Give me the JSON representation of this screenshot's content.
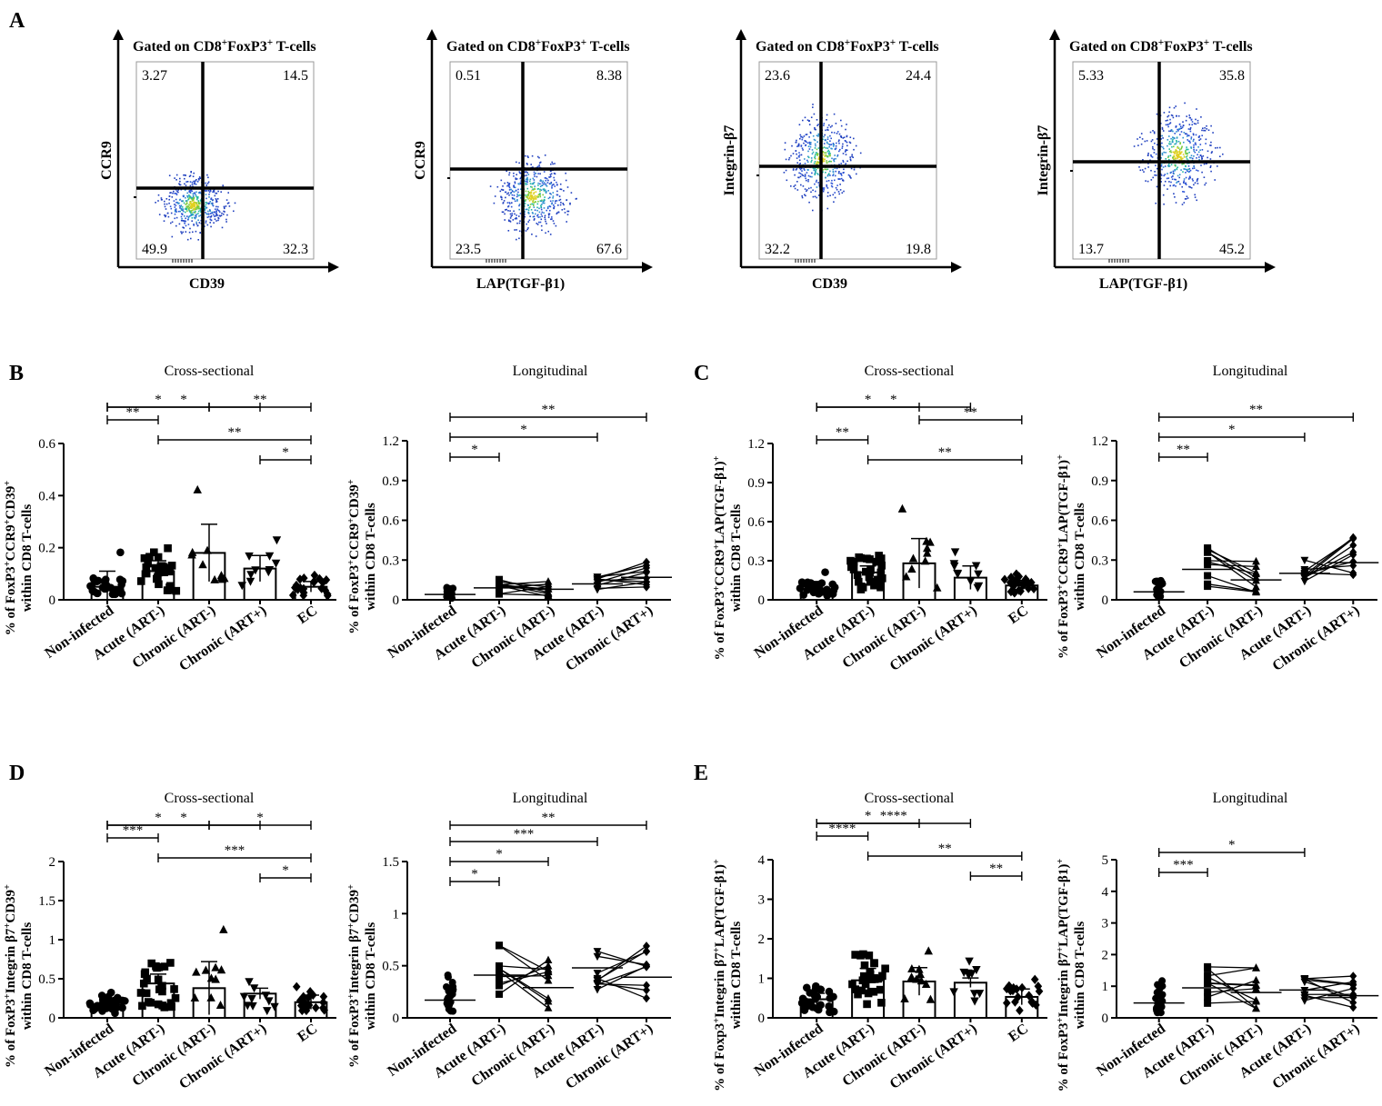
{
  "panel_letters": [
    "A",
    "B",
    "C",
    "D",
    "E"
  ],
  "flow_plots": [
    {
      "header": "Gated on CD8+FoxP3+ T-cells",
      "x_label": "CD39",
      "y_label": "CCR9",
      "ul": "3.27",
      "ur": "14.5",
      "ll": "49.9",
      "lr": "32.3"
    },
    {
      "header": "Gated on CD8+FoxP3+ T-cells",
      "x_label": "LAP(TGF-β1)",
      "y_label": "CCR9",
      "ul": "0.51",
      "ur": "8.38",
      "ll": "23.5",
      "lr": "67.6"
    },
    {
      "header": "Gated on CD8+FoxP3+ T-cells",
      "x_label": "CD39",
      "y_label": "Integrin-β7",
      "ul": "23.6",
      "ur": "24.4",
      "ll": "32.2",
      "lr": "19.8"
    },
    {
      "header": "Gated on CD8+FoxP3+ T-cells",
      "x_label": "LAP(TGF-β1)",
      "y_label": "Integrin-β7",
      "ul": "5.33",
      "ur": "35.8",
      "ll": "13.7",
      "lr": "45.2"
    }
  ],
  "chart_data": [
    {
      "type": "bar",
      "panel": "B",
      "title": "Cross-sectional",
      "ylabel": "% of FoxP3+CCR9+CD39+ within CD8 T-cells",
      "ylim": [
        0,
        0.6
      ],
      "yticks": [
        "0",
        "0.2",
        "0.4",
        "0.6"
      ],
      "categories": [
        "Non-infected",
        "Acute (ART-)",
        "Chronic (ART-)",
        "Chronic (ART+)",
        "EC"
      ],
      "values": [
        0.05,
        0.11,
        0.18,
        0.12,
        0.05
      ],
      "errors": [
        0.06,
        0.04,
        0.11,
        0.05,
        0.02
      ],
      "comparisons": [
        {
          "from": 0,
          "to": 3,
          "label": "*"
        },
        {
          "from": 0,
          "to": 2,
          "label": "*"
        },
        {
          "from": 2,
          "to": 4,
          "label": "**"
        },
        {
          "from": 0,
          "to": 1,
          "label": "**"
        },
        {
          "from": 1,
          "to": 4,
          "label": "**"
        },
        {
          "from": 3,
          "to": 4,
          "label": "*"
        }
      ]
    },
    {
      "type": "line",
      "panel": "B",
      "title": "Longitudinal",
      "ylabel": "% of FoxP3+CCR9+CD39+ within CD8 T-cells",
      "ylim": [
        0,
        1.2
      ],
      "yticks": [
        "0",
        "0.3",
        "0.6",
        "0.9",
        "1.2"
      ],
      "categories": [
        "Non-infected",
        "Acute (ART-)",
        "Chronic (ART-)",
        "Acute (ART-)",
        "Chronic (ART+)"
      ],
      "medians": [
        0.04,
        0.09,
        0.08,
        0.12,
        0.17
      ],
      "comparisons": [
        {
          "from": 0,
          "to": 4,
          "label": "**"
        },
        {
          "from": 0,
          "to": 3,
          "label": "*"
        },
        {
          "from": 0,
          "to": 1,
          "label": "*"
        }
      ]
    },
    {
      "type": "bar",
      "panel": "C",
      "title": "Cross-sectional",
      "ylabel": "% of FoxP3+CCR9+LAP(TGF-β1)+ within CD8 T-cells",
      "ylim": [
        0,
        1.2
      ],
      "yticks": [
        "0",
        "0.3",
        "0.6",
        "0.9",
        "1.2"
      ],
      "categories": [
        "Non-infected",
        "Acute (ART-)",
        "Chronic (ART-)",
        "Chronic (ART+)",
        "EC"
      ],
      "values": [
        0.08,
        0.21,
        0.28,
        0.17,
        0.11
      ],
      "errors": [
        0.06,
        0.05,
        0.19,
        0.09,
        0.04
      ],
      "comparisons": [
        {
          "from": 0,
          "to": 3,
          "label": "*"
        },
        {
          "from": 0,
          "to": 2,
          "label": "*"
        },
        {
          "from": 2,
          "to": 4,
          "label": "**"
        },
        {
          "from": 0,
          "to": 1,
          "label": "**"
        },
        {
          "from": 1,
          "to": 4,
          "label": "**"
        }
      ]
    },
    {
      "type": "line",
      "panel": "C",
      "title": "Longitudinal",
      "ylabel": "% of FoxP3+CCR9+LAP(TGF-β1)+ within CD8 T-cells",
      "ylim": [
        0,
        1.2
      ],
      "yticks": [
        "0",
        "0.3",
        "0.6",
        "0.9",
        "1.2"
      ],
      "categories": [
        "Non-infected",
        "Acute (ART-)",
        "Chronic (ART-)",
        "Acute (ART-)",
        "Chronic (ART+)"
      ],
      "medians": [
        0.06,
        0.23,
        0.15,
        0.2,
        0.28
      ],
      "comparisons": [
        {
          "from": 0,
          "to": 4,
          "label": "**"
        },
        {
          "from": 0,
          "to": 3,
          "label": "*"
        },
        {
          "from": 0,
          "to": 1,
          "label": "**"
        }
      ]
    },
    {
      "type": "bar",
      "panel": "D",
      "title": "Cross-sectional",
      "ylabel": "% of FoxP3+Integrin β7+CD39+ within CD8 T-cells",
      "ylim": [
        0,
        2
      ],
      "yticks": [
        "0",
        "0.5",
        "1",
        "1.5",
        "2"
      ],
      "categories": [
        "Non-infected",
        "Acute (ART-)",
        "Chronic (ART-)",
        "Chronic (ART+)",
        "EC"
      ],
      "values": [
        0.17,
        0.44,
        0.38,
        0.31,
        0.2
      ],
      "errors": [
        0.07,
        0.12,
        0.34,
        0.07,
        0.09
      ],
      "comparisons": [
        {
          "from": 0,
          "to": 3,
          "label": "*"
        },
        {
          "from": 0,
          "to": 2,
          "label": "*"
        },
        {
          "from": 2,
          "to": 4,
          "label": "*"
        },
        {
          "from": 0,
          "to": 1,
          "label": "***"
        },
        {
          "from": 1,
          "to": 4,
          "label": "***"
        },
        {
          "from": 3,
          "to": 4,
          "label": "*"
        }
      ]
    },
    {
      "type": "line",
      "panel": "D",
      "title": "Longitudinal",
      "ylabel": "% of FoxP3+Integrin β7+CD39+ within CD8 T-cells",
      "ylim": [
        0,
        1.5
      ],
      "yticks": [
        "0",
        "0.5",
        "1",
        "1.5"
      ],
      "categories": [
        "Non-infected",
        "Acute (ART-)",
        "Chronic (ART-)",
        "Acute (ART-)",
        "Chronic (ART+)"
      ],
      "medians": [
        0.17,
        0.41,
        0.29,
        0.48,
        0.39
      ],
      "comparisons": [
        {
          "from": 0,
          "to": 4,
          "label": "**"
        },
        {
          "from": 0,
          "to": 3,
          "label": "***"
        },
        {
          "from": 0,
          "to": 2,
          "label": "*"
        },
        {
          "from": 0,
          "to": 1,
          "label": "*"
        }
      ]
    },
    {
      "type": "bar",
      "panel": "E",
      "title": "Cross-sectional",
      "ylabel": "% of Foxp3+Integrin β7+LAP(TGF-β1)+ within CD8 T-cells",
      "ylim": [
        0,
        4
      ],
      "yticks": [
        "0",
        "1",
        "2",
        "3",
        "4"
      ],
      "categories": [
        "Non-infected",
        "Acute (ART-)",
        "Chronic (ART-)",
        "Chronic (ART+)",
        "EC"
      ],
      "values": [
        0.47,
        0.95,
        0.92,
        0.89,
        0.53
      ],
      "errors": [
        0.15,
        0.3,
        0.35,
        0.12,
        0.2
      ],
      "comparisons": [
        {
          "from": 0,
          "to": 3,
          "label": "****"
        },
        {
          "from": 0,
          "to": 2,
          "label": "*"
        },
        {
          "from": 0,
          "to": 1,
          "label": "****"
        },
        {
          "from": 1,
          "to": 4,
          "label": "**"
        },
        {
          "from": 3,
          "to": 4,
          "label": "**"
        }
      ]
    },
    {
      "type": "line",
      "panel": "E",
      "title": "Longitudinal",
      "ylabel": "% of FoxP3+Integrin β7+LAP(TGF-β1)+ within CD8 T-cells",
      "ylim": [
        0,
        5
      ],
      "yticks": [
        "0",
        "1",
        "2",
        "3",
        "4",
        "5"
      ],
      "categories": [
        "Non-infected",
        "Acute (ART-)",
        "Chronic (ART-)",
        "Acute (ART-)",
        "Chronic (ART+)"
      ],
      "medians": [
        0.47,
        0.95,
        0.8,
        0.88,
        0.7
      ],
      "comparisons": [
        {
          "from": 0,
          "to": 3,
          "label": "*"
        },
        {
          "from": 0,
          "to": 1,
          "label": "***"
        }
      ]
    }
  ]
}
